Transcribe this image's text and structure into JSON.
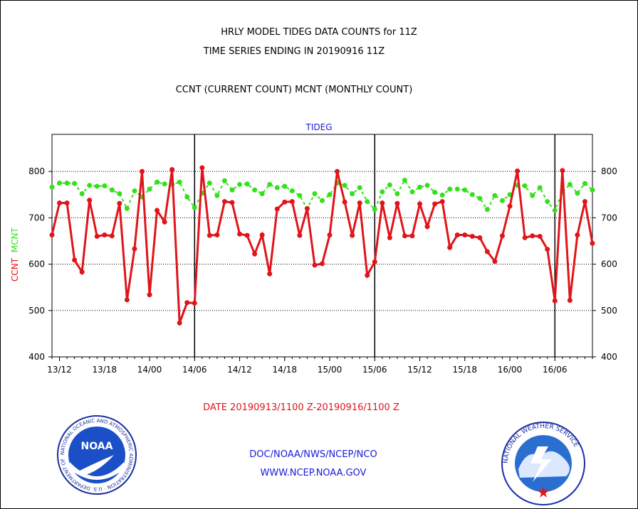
{
  "header": {
    "title_line1": "HRLY MODEL TIDEG DATA COUNTS for 11Z",
    "title_line2": "TIME SERIES ENDING IN 20190916 11Z",
    "subtitle": "CCNT (CURRENT COUNT) MCNT (MONTHLY COUNT)",
    "plot_title": "TIDEG"
  },
  "ylabel": {
    "ccnt": "CCNT",
    "mcnt": "MCNT"
  },
  "footer": {
    "date_range": "DATE 20190913/1100 Z-20190916/1100 Z",
    "org": "DOC/NOAA/NWS/NCEP/NCO",
    "website": "WWW.NCEP.NOAA.GOV"
  },
  "logos": {
    "noaa_text": "NOAA",
    "noaa_ring": "NATIONAL OCEANIC AND ATMOSPHERIC ADMINISTRATION · U.S. DEPARTMENT OF COMMERCE",
    "nws_ring": "NATIONAL WEATHER SERVICE"
  },
  "colors": {
    "ccnt": "#e0141a",
    "mcnt": "#33e01a",
    "title_blue": "#1a1adb"
  },
  "chart_data": {
    "type": "line",
    "title": "TIDEG",
    "xlabel": "DATE 20190913/1100 Z-20190916/1100 Z",
    "ylabel": "CCNT MCNT",
    "x_ticks": [
      "13/12",
      "13/18",
      "14/00",
      "14/06",
      "14/12",
      "14/18",
      "15/00",
      "15/06",
      "15/12",
      "15/18",
      "16/00",
      "16/06"
    ],
    "x_range_hours": [
      11,
      83
    ],
    "ylim": [
      400,
      880
    ],
    "y_ticks": [
      400,
      500,
      600,
      700,
      800
    ],
    "grid": "dotted horizontal at 500, 600, 700, 800",
    "day_boundaries": [
      "14/06",
      "15/06",
      "16/06"
    ],
    "series": [
      {
        "name": "CCNT",
        "values": [
          663,
          732,
          732,
          609,
          583,
          738,
          660,
          663,
          661,
          731,
          523,
          633,
          800,
          534,
          716,
          691,
          804,
          473,
          517,
          516,
          808,
          662,
          663,
          735,
          733,
          665,
          662,
          622,
          663,
          579,
          719,
          734,
          735,
          662,
          720,
          598,
          601,
          663,
          800,
          734,
          662,
          732,
          576,
          605,
          732,
          657,
          731,
          661,
          661,
          730,
          681,
          730,
          735,
          636,
          663,
          663,
          660,
          657,
          627,
          606,
          661,
          725,
          801,
          657,
          661,
          660,
          632,
          521,
          802,
          522,
          663,
          735,
          645
        ]
      },
      {
        "name": "MCNT",
        "values": [
          766,
          775,
          775,
          774,
          752,
          770,
          768,
          769,
          760,
          752,
          720,
          758,
          745,
          762,
          777,
          773,
          772,
          777,
          745,
          722,
          753,
          775,
          748,
          780,
          760,
          772,
          773,
          760,
          752,
          772,
          765,
          768,
          758,
          748,
          720,
          752,
          737,
          750,
          775,
          770,
          752,
          765,
          735,
          718,
          756,
          771,
          752,
          781,
          756,
          766,
          770,
          755,
          749,
          762,
          762,
          760,
          750,
          742,
          718,
          748,
          737,
          750,
          770,
          769,
          748,
          765,
          735,
          716,
          756,
          772,
          753,
          774,
          760
        ]
      }
    ]
  }
}
